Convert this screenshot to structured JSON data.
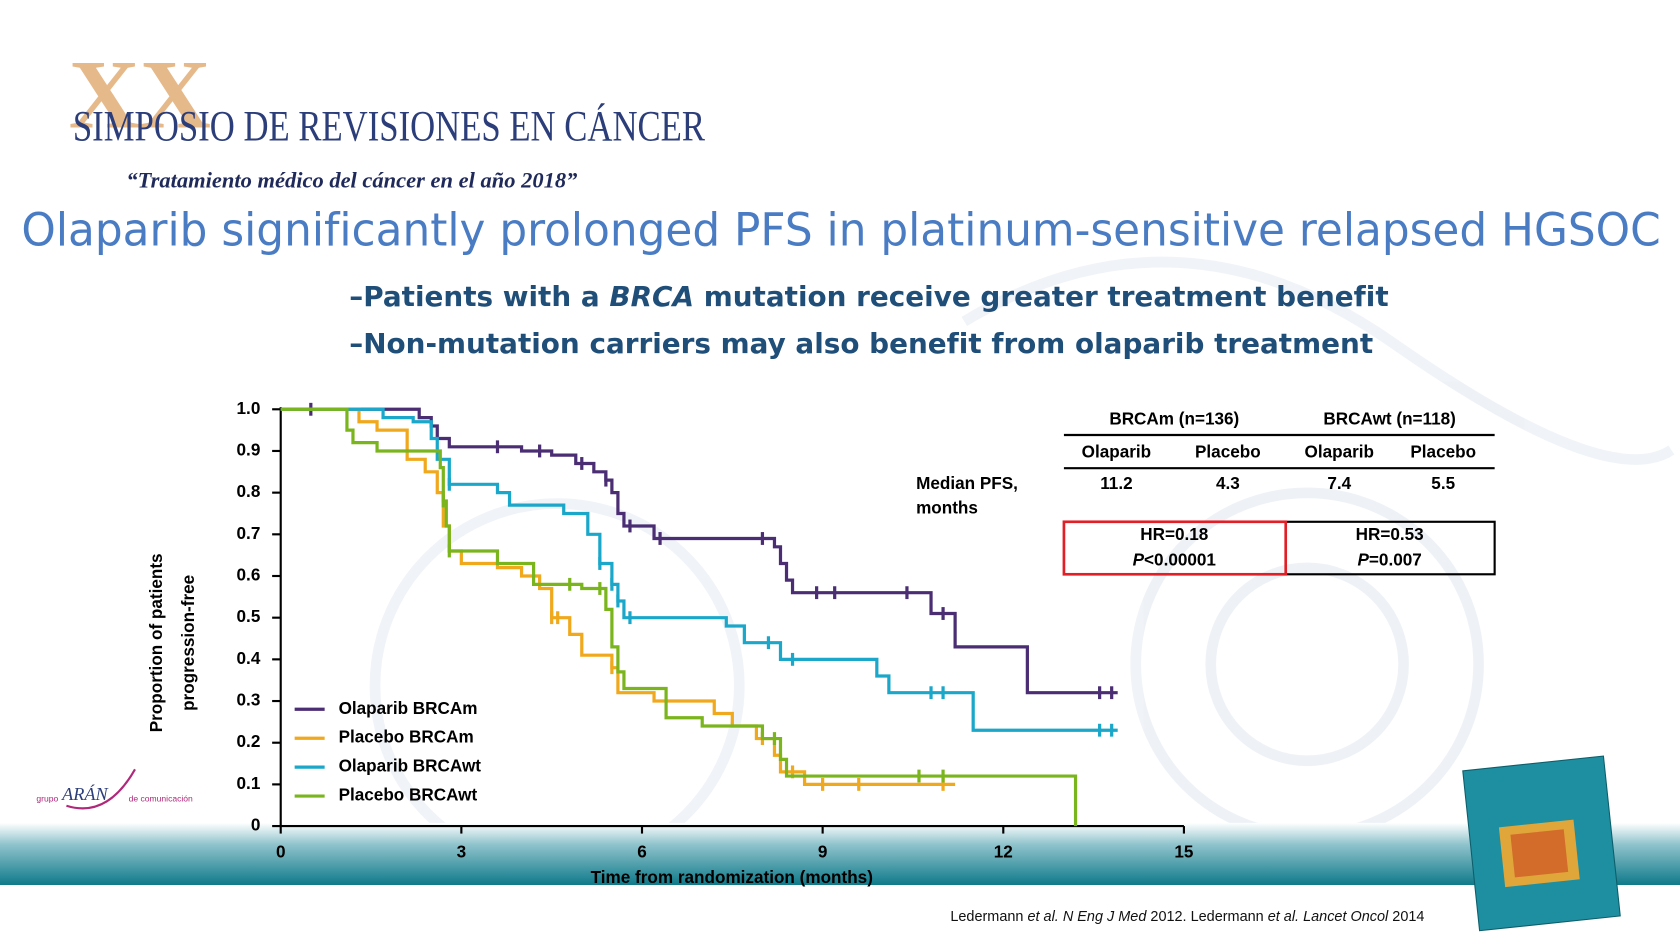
{
  "header": {
    "mark": "XX",
    "title": "SIMPOSIO DE REVISIONES EN CÁNCER",
    "subtitle": "“Tratamiento médico del cáncer en el año 2018”"
  },
  "slide_title": "Olaparib significantly prolonged PFS in platinum-sensitive relapsed HGSOC",
  "bullets": [
    [
      "–Patients with a ",
      "BRCA",
      " mutation receive greater treatment benefit"
    ],
    [
      "–Non-mutation carriers may also benefit from olaparib treatment"
    ]
  ],
  "logo": [
    "grupo",
    "ARÁN",
    "de comunicación"
  ],
  "citation": [
    "Ledermann ",
    "et al.",
    " ",
    "N Eng J Med",
    " 2012. Ledermann ",
    "et al.",
    " ",
    "Lancet Oncol",
    " 2014"
  ],
  "table": {
    "groups": [
      "BRCAm (n=136)",
      "BRCAwt (n=118)"
    ],
    "arms": [
      "Olaparib",
      "Placebo",
      "Olaparib",
      "Placebo"
    ],
    "row_label": [
      "Median PFS,",
      "months"
    ],
    "median_pfs": [
      11.2,
      4.3,
      7.4,
      5.5
    ],
    "hazard": [
      {
        "hr": "HR=0.18",
        "p": [
          "P",
          "<0.00001"
        ]
      },
      {
        "hr": "HR=0.53",
        "p": [
          "P",
          "=0.007"
        ]
      }
    ]
  },
  "chart_data": {
    "type": "step",
    "xlabel": "Time from randomization (months)",
    "ylabel": [
      "Proportion of patients",
      "progression-free"
    ],
    "xlim": [
      0,
      15
    ],
    "ylim": [
      0,
      1
    ],
    "xticks": [
      0,
      3,
      6,
      9,
      12,
      15
    ],
    "yticks": [
      0,
      0.1,
      0.2,
      0.3,
      0.4,
      0.5,
      0.6,
      0.7,
      0.8,
      0.9,
      {
        "value": 1,
        "label": "1.0"
      }
    ],
    "legend": "bottom-left",
    "series": [
      {
        "name": "Olaparib BRCAm",
        "color": "#4b2d73",
        "x": [
          0,
          2.3,
          2.5,
          2.6,
          2.8,
          3.0,
          4.0,
          4.5,
          4.9,
          5.2,
          5.4,
          5.5,
          5.6,
          5.7,
          6.2,
          8.2,
          8.3,
          8.4,
          8.5,
          10.8,
          11.2,
          12.4,
          13.9
        ],
        "values": [
          1,
          0.98,
          0.96,
          0.93,
          0.91,
          0.91,
          0.9,
          0.89,
          0.87,
          0.85,
          0.83,
          0.8,
          0.75,
          0.72,
          0.69,
          0.67,
          0.63,
          0.59,
          0.56,
          0.51,
          0.43,
          0.32,
          0.32
        ],
        "censored": [
          0.5,
          3.6,
          4.3,
          5.0,
          5.4,
          5.8,
          6.3,
          8.0,
          8.9,
          9.2,
          10.4,
          11.0,
          13.6,
          13.8
        ]
      },
      {
        "name": "Placebo BRCAm",
        "color": "#f0a81c",
        "x": [
          0,
          1.3,
          1.6,
          2.1,
          2.4,
          2.6,
          2.7,
          2.8,
          3.0,
          3.6,
          4.0,
          4.3,
          4.5,
          4.8,
          5.0,
          5.5,
          5.6,
          6.2,
          7.2,
          7.5,
          7.9,
          8.2,
          8.3,
          8.7,
          11.2
        ],
        "values": [
          1,
          0.97,
          0.95,
          0.88,
          0.85,
          0.8,
          0.72,
          0.66,
          0.63,
          0.62,
          0.6,
          0.57,
          0.5,
          0.46,
          0.41,
          0.38,
          0.32,
          0.3,
          0.27,
          0.24,
          0.21,
          0.17,
          0.13,
          0.1,
          0.1
        ],
        "censored": [
          4.5,
          4.6,
          5.5,
          8.0,
          8.5,
          9.0,
          9.6,
          11.0
        ]
      },
      {
        "name": "Olaparib BRCAwt",
        "color": "#1aa7c9",
        "x": [
          0,
          1.7,
          2.2,
          2.5,
          2.6,
          2.8,
          3.6,
          3.8,
          4.7,
          5.1,
          5.3,
          5.5,
          5.6,
          5.7,
          7.4,
          7.7,
          8.3,
          9.9,
          10.1,
          11.5,
          13.9
        ],
        "values": [
          1,
          0.98,
          0.97,
          0.93,
          0.88,
          0.82,
          0.8,
          0.77,
          0.75,
          0.7,
          0.63,
          0.58,
          0.54,
          0.5,
          0.48,
          0.44,
          0.4,
          0.36,
          0.32,
          0.23,
          0.23
        ],
        "censored": [
          2.8,
          5.3,
          5.5,
          5.6,
          5.8,
          8.1,
          8.5,
          10.8,
          11.0,
          13.6,
          13.8
        ]
      },
      {
        "name": "Placebo BRCAwt",
        "color": "#7ab51d",
        "x": [
          0,
          1.1,
          1.2,
          1.6,
          2.6,
          2.65,
          2.7,
          2.75,
          2.8,
          3.6,
          4.2,
          5.0,
          5.4,
          5.5,
          5.6,
          5.7,
          6.4,
          7.0,
          8.0,
          8.3,
          8.4,
          13.2,
          13.2
        ],
        "values": [
          1,
          0.95,
          0.92,
          0.9,
          0.9,
          0.86,
          0.78,
          0.72,
          0.66,
          0.63,
          0.58,
          0.57,
          0.52,
          0.43,
          0.37,
          0.33,
          0.26,
          0.24,
          0.21,
          0.16,
          0.12,
          0.12,
          0
        ],
        "censored": [
          2.7,
          2.8,
          4.8,
          5.3,
          8.2,
          10.6,
          11.0
        ]
      }
    ]
  }
}
